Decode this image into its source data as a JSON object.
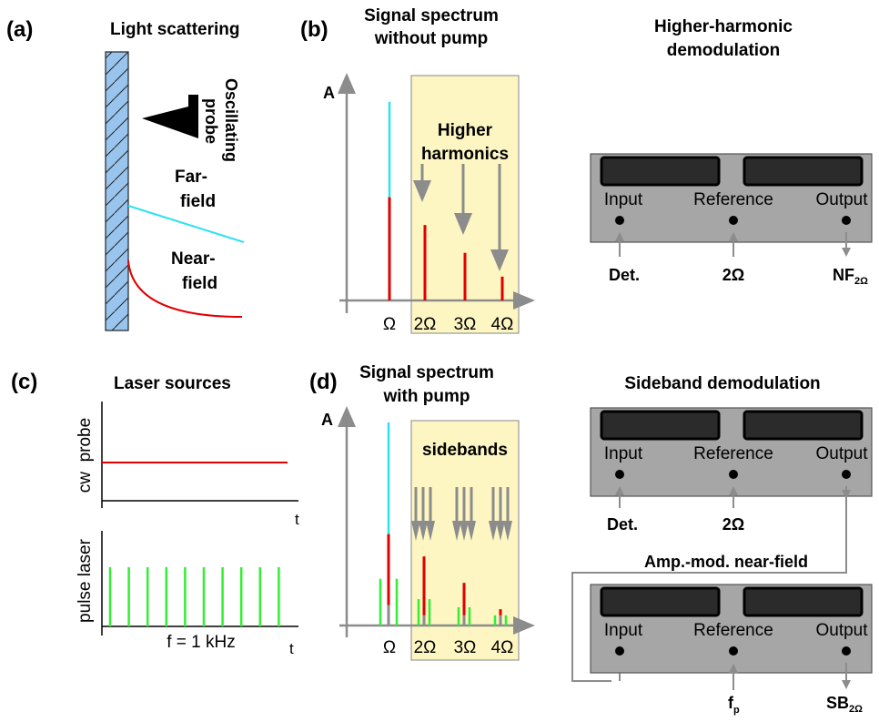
{
  "panels": {
    "a": {
      "letter": "(a)",
      "title": "Light scattering",
      "probe_label": "Oscillating probe",
      "probe_line1": "Oscillating",
      "probe_line2": "probe",
      "farfield_line1": "Far-",
      "farfield_line2": "field",
      "nearfield_line1": "Near-",
      "nearfield_line2": "field"
    },
    "b": {
      "letter": "(b)",
      "title_line1": "Signal spectrum",
      "title_line2": "without pump",
      "y_axis": "A",
      "box_line1": "Higher",
      "box_line2": "harmonics",
      "ticks": [
        "Ω",
        "2Ω",
        "3Ω",
        "4Ω"
      ]
    },
    "c": {
      "letter": "(c)",
      "title": "Laser sources",
      "upper_ylabel": "cw  probe",
      "lower_ylabel": "pulse laser",
      "t1": "t",
      "t2": "t",
      "freq": "f = 1 kHz"
    },
    "d": {
      "letter": "(d)",
      "title_line1": "Signal spectrum",
      "title_line2": "with pump",
      "y_axis": "A",
      "box": "sidebands",
      "ticks": [
        "Ω",
        "2Ω",
        "3Ω",
        "4Ω"
      ]
    },
    "hh": {
      "title_line1": "Higher-harmonic",
      "title_line2": "demodulation",
      "input": "Input",
      "reference": "Reference",
      "output": "Output",
      "in_sig": "Det.",
      "ref_sig": "2Ω",
      "out_main": "NF",
      "out_sub": "2Ω"
    },
    "sb": {
      "title": "Sideband demodulation",
      "input": "Input",
      "reference": "Reference",
      "output": "Output",
      "in_sig": "Det.",
      "ref_sig": "2Ω",
      "middle": "Amp.-mod. near-field",
      "input2": "Input",
      "reference2": "Reference",
      "output2": "Output",
      "ref2_main": "f",
      "ref2_sub": "p",
      "out2_main": "SB",
      "out2_sub": "2Ω"
    }
  },
  "spectrum_b": {
    "units": "relative amplitude",
    "peaks": [
      {
        "harmonic": 1,
        "total": 1.0,
        "nearfield": 0.52
      },
      {
        "harmonic": 2,
        "total": 0.38,
        "nearfield": 0.38
      },
      {
        "harmonic": 3,
        "total": 0.24,
        "nearfield": 0.24
      },
      {
        "harmonic": 4,
        "total": 0.12,
        "nearfield": 0.12
      }
    ]
  },
  "spectrum_d": {
    "units": "relative amplitude",
    "carrier": {
      "total": 1.0,
      "nearfield": 0.45,
      "sidebands": [
        0.23,
        0.23
      ]
    },
    "peaks": [
      {
        "harmonic": 2,
        "nearfield": 0.34,
        "sidebands": [
          0.13,
          0.13
        ]
      },
      {
        "harmonic": 3,
        "nearfield": 0.21,
        "sidebands": [
          0.09,
          0.09
        ]
      },
      {
        "harmonic": 4,
        "nearfield": 0.08,
        "sidebands": [
          0.05,
          0.05
        ]
      }
    ]
  },
  "pulse_train": {
    "count": 10
  },
  "colors": {
    "sample": "#99c4ee",
    "farfield": "#2de1ef",
    "nearfield": "#e00000",
    "pulse": "#33ee33",
    "axis": "#8c8c8c",
    "box": "#fdf6c2",
    "lockin": "#a6a6a6"
  }
}
